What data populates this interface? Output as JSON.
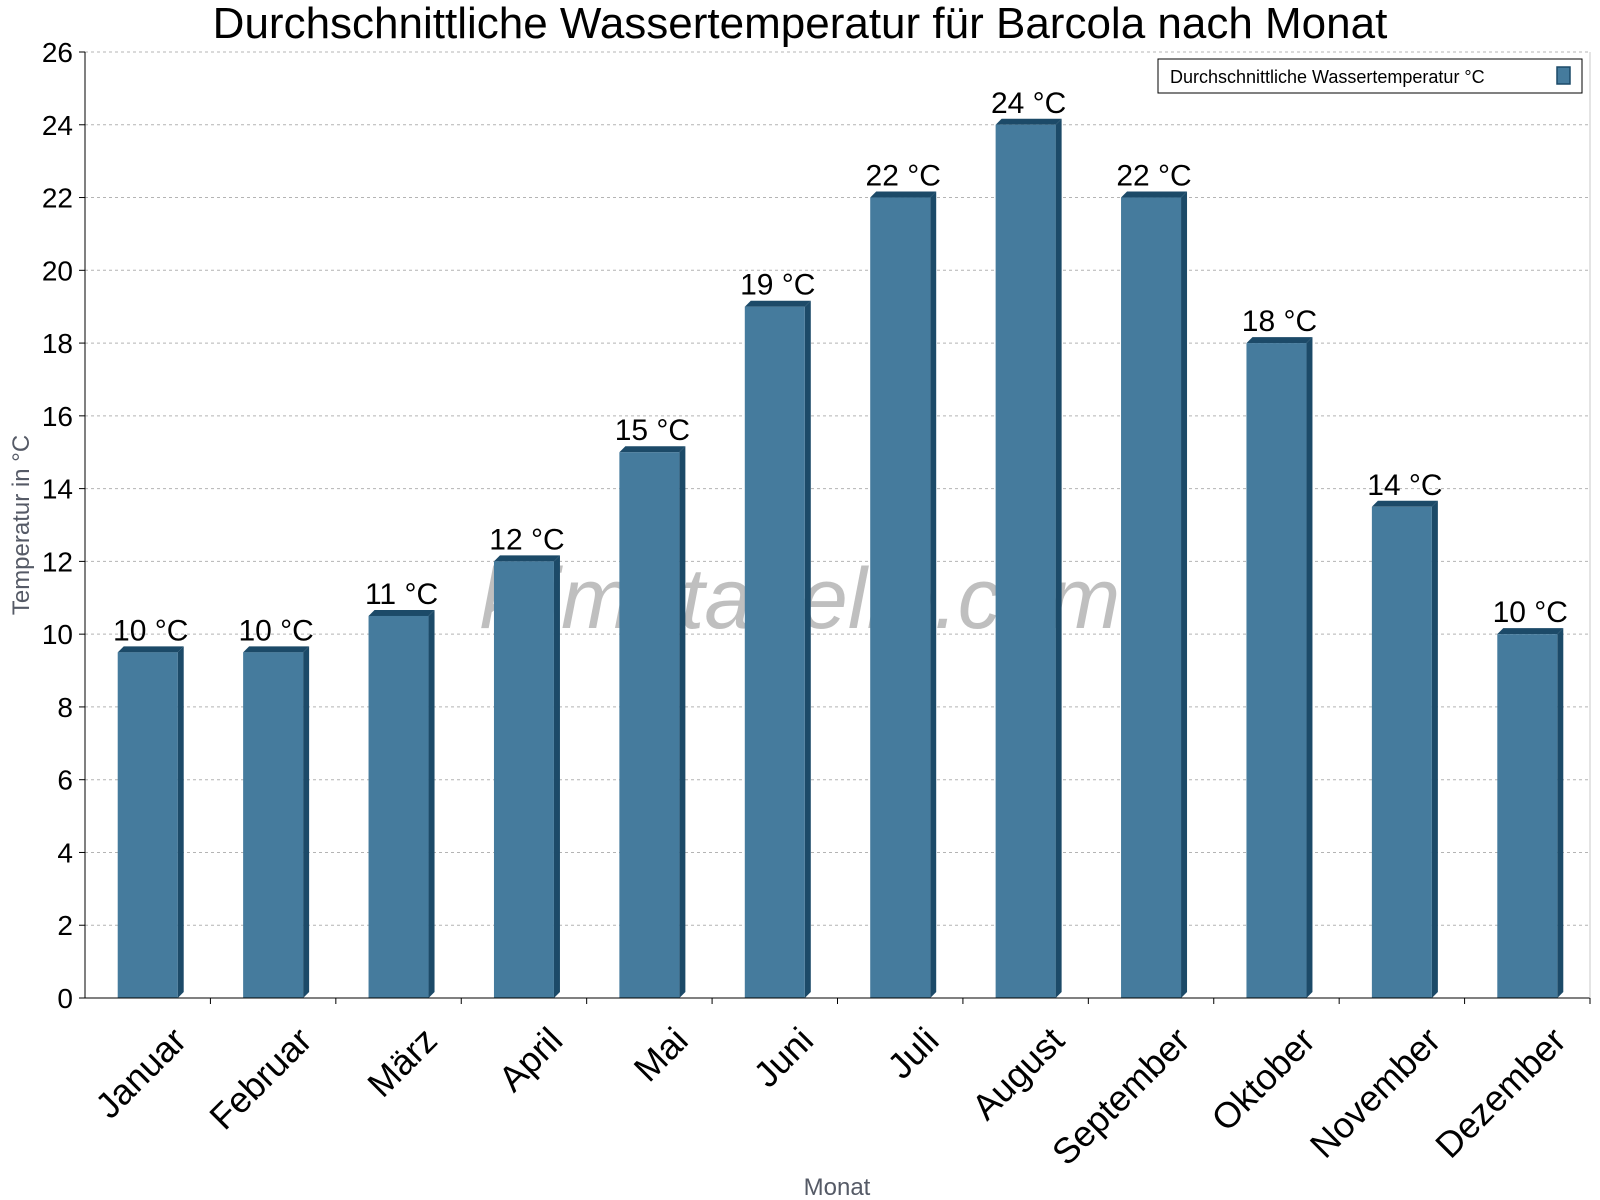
{
  "chart_data": {
    "type": "bar",
    "title": "Durchschnittliche Wassertemperatur für Barcola nach Monat",
    "xlabel": "Monat",
    "ylabel": "Temperatur in °C",
    "categories": [
      "Januar",
      "Februar",
      "März",
      "April",
      "Mai",
      "Juni",
      "Juli",
      "August",
      "September",
      "Oktober",
      "November",
      "Dezember"
    ],
    "series": [
      {
        "name": "Durchschnittliche Wassertemperatur °C",
        "values": [
          9.5,
          9.5,
          10.5,
          12,
          15,
          19,
          22,
          24,
          22,
          18,
          13.5,
          10
        ],
        "data_labels": [
          "10 °C",
          "10 °C",
          "11 °C",
          "12 °C",
          "15 °C",
          "19 °C",
          "22 °C",
          "24 °C",
          "22 °C",
          "18 °C",
          "14 °C",
          "10 °C"
        ],
        "color": "#457b9d",
        "edge_color": "#1c4a68"
      }
    ],
    "ylim": [
      0,
      26
    ],
    "yticks": [
      0,
      2,
      4,
      6,
      8,
      10,
      12,
      14,
      16,
      18,
      20,
      22,
      24,
      26
    ],
    "grid": true,
    "legend_position": "top-right",
    "watermark": "klimatabelle.com"
  }
}
